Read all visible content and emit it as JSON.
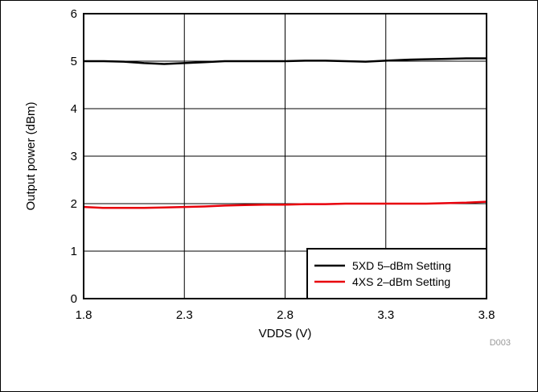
{
  "chart_data": {
    "type": "line",
    "xlabel": "VDDS (V)",
    "ylabel": "Output power (dBm)",
    "xlim": [
      1.8,
      3.8
    ],
    "ylim": [
      0,
      6
    ],
    "x_ticks": [
      "1.8",
      "2.3",
      "2.8",
      "3.3",
      "3.8"
    ],
    "y_ticks": [
      "0",
      "1",
      "2",
      "3",
      "4",
      "5",
      "6"
    ],
    "grid": true,
    "legend_position": "bottom-right",
    "annotation": "D003",
    "series": [
      {
        "name": "5XD 5–dBm Setting",
        "color": "#000000",
        "x": [
          1.8,
          1.9,
          2.0,
          2.1,
          2.2,
          2.3,
          2.4,
          2.5,
          2.6,
          2.7,
          2.8,
          2.9,
          3.0,
          3.1,
          3.2,
          3.3,
          3.4,
          3.5,
          3.6,
          3.7,
          3.8
        ],
        "y": [
          5.0,
          5.0,
          4.99,
          4.96,
          4.94,
          4.96,
          4.98,
          5.0,
          5.0,
          5.0,
          5.0,
          5.01,
          5.01,
          5.0,
          4.99,
          5.01,
          5.03,
          5.04,
          5.05,
          5.06,
          5.06
        ]
      },
      {
        "name": "4XS 2–dBm Setting",
        "color": "#e8000b",
        "x": [
          1.8,
          1.9,
          2.0,
          2.1,
          2.2,
          2.3,
          2.4,
          2.5,
          2.6,
          2.7,
          2.8,
          2.9,
          3.0,
          3.1,
          3.2,
          3.3,
          3.4,
          3.5,
          3.6,
          3.7,
          3.8
        ],
        "y": [
          1.93,
          1.91,
          1.91,
          1.91,
          1.92,
          1.93,
          1.94,
          1.96,
          1.97,
          1.98,
          1.98,
          1.99,
          1.99,
          2.0,
          2.0,
          2.0,
          2.0,
          2.0,
          2.01,
          2.02,
          2.04
        ]
      }
    ]
  }
}
